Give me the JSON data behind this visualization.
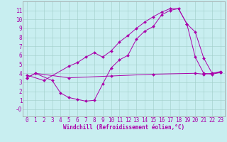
{
  "xlabel": "Windchill (Refroidissement éolien,°C)",
  "background_color": "#c8eef0",
  "grid_color": "#a0ccc8",
  "line_color": "#aa00aa",
  "xlim": [
    -0.5,
    23.5
  ],
  "ylim": [
    -0.8,
    12.0
  ],
  "xticks": [
    0,
    1,
    2,
    3,
    4,
    5,
    6,
    7,
    8,
    9,
    10,
    11,
    12,
    13,
    14,
    15,
    16,
    17,
    18,
    19,
    20,
    21,
    22,
    23
  ],
  "yticks": [
    0,
    1,
    2,
    3,
    4,
    5,
    6,
    7,
    8,
    9,
    10,
    11
  ],
  "ytick_labels": [
    "-0",
    "1",
    "2",
    "3",
    "4",
    "5",
    "6",
    "7",
    "8",
    "9",
    "10",
    "11"
  ],
  "line1_x": [
    0,
    1,
    3,
    4,
    5,
    6,
    7,
    8,
    9,
    10,
    11,
    12,
    13,
    14,
    15,
    16,
    17,
    18,
    19,
    20,
    21,
    22,
    23
  ],
  "line1_y": [
    3.5,
    4.0,
    3.2,
    1.8,
    1.3,
    1.1,
    0.9,
    1.0,
    2.8,
    4.6,
    5.5,
    6.0,
    7.8,
    8.7,
    9.2,
    10.5,
    11.0,
    11.2,
    9.5,
    5.8,
    4.0,
    3.9,
    4.1
  ],
  "line2_x": [
    0,
    2,
    5,
    6,
    7,
    8,
    9,
    10,
    11,
    12,
    13,
    14,
    15,
    16,
    17,
    18,
    19,
    20,
    21,
    22,
    23
  ],
  "line2_y": [
    3.8,
    3.2,
    4.8,
    5.2,
    5.8,
    6.3,
    5.8,
    6.5,
    7.5,
    8.2,
    9.0,
    9.7,
    10.3,
    10.8,
    11.2,
    11.2,
    9.5,
    8.6,
    5.7,
    4.0,
    4.2
  ],
  "line3_x": [
    0,
    1,
    5,
    10,
    15,
    20,
    21,
    22,
    23
  ],
  "line3_y": [
    3.5,
    4.0,
    3.5,
    3.7,
    3.9,
    4.0,
    3.9,
    4.0,
    4.1
  ],
  "font_size": 5.5
}
